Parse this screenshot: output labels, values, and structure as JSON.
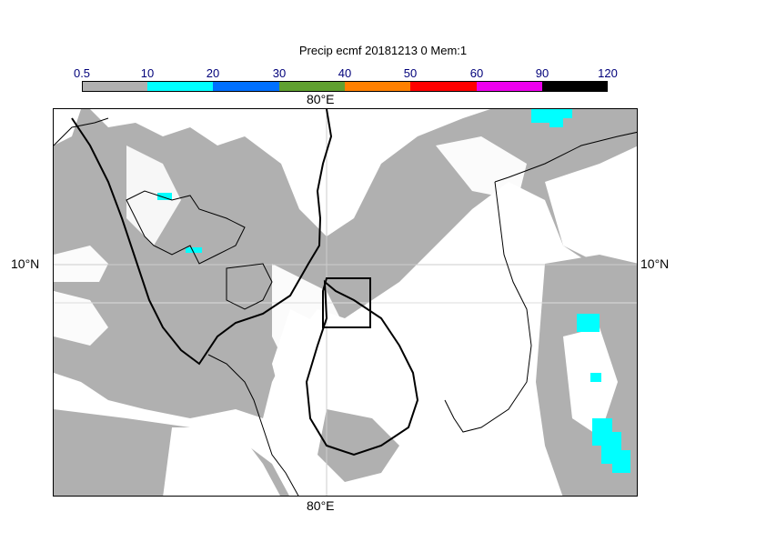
{
  "title": "Precip ecmf 20181213 0 Mem:1",
  "colorbar": {
    "labels": [
      "0.5",
      "10",
      "20",
      "30",
      "40",
      "50",
      "60",
      "90",
      "120"
    ],
    "colors": [
      "#b0b0b0",
      "#00ffff",
      "#0070ff",
      "#60a030",
      "#ff8000",
      "#ff0000",
      "#ee00ee",
      "#000000"
    ]
  },
  "axes": {
    "top_lon": "80°E",
    "bottom_lon": "80°E",
    "left_lat": "10°N",
    "right_lat": "10°N"
  },
  "icons": {
    "map": "precipitation-map",
    "region_box": "highlight-box"
  }
}
